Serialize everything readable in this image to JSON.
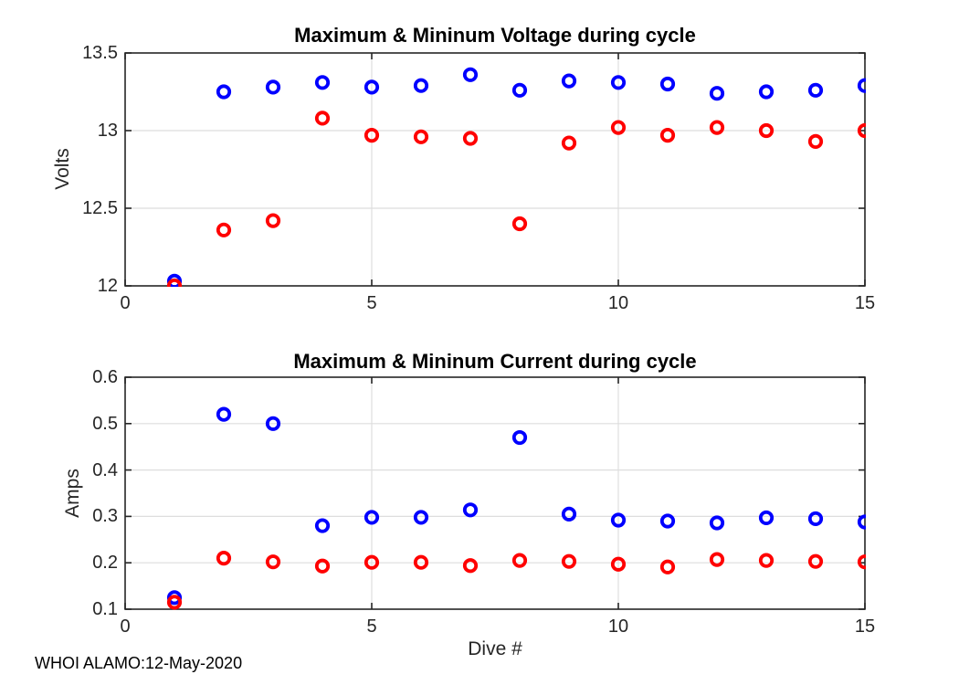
{
  "figure": {
    "annotation": "WHOI ALAMO:12-May-2020"
  },
  "chart_data": [
    {
      "type": "scatter",
      "title": "Maximum & Mininum Voltage during cycle",
      "xlabel": "",
      "ylabel": "Volts",
      "xlim": [
        0,
        15
      ],
      "ylim": [
        12,
        13.5
      ],
      "xticks": [
        0,
        5,
        10,
        15
      ],
      "xtick_labels": [
        "0",
        "5",
        "10",
        "15"
      ],
      "yticks": [
        12,
        12.5,
        13,
        13.5
      ],
      "ytick_labels": [
        "12",
        "12.5",
        "13",
        "13.5"
      ],
      "grid": true,
      "marker": "open-circle",
      "x": [
        1,
        2,
        3,
        4,
        5,
        6,
        7,
        8,
        9,
        10,
        11,
        12,
        13,
        14,
        15
      ],
      "series": [
        {
          "name": "max_voltage",
          "color": "#0000ff",
          "values": [
            12.03,
            13.25,
            13.28,
            13.31,
            13.28,
            13.29,
            13.36,
            13.26,
            13.32,
            13.31,
            13.3,
            13.24,
            13.25,
            13.26,
            13.29
          ]
        },
        {
          "name": "min_voltage",
          "color": "#ff0000",
          "values": [
            12.0,
            12.36,
            12.42,
            13.08,
            12.97,
            12.96,
            12.95,
            12.4,
            12.92,
            13.02,
            12.97,
            13.02,
            13.0,
            12.93,
            13.0
          ]
        }
      ]
    },
    {
      "type": "scatter",
      "title": "Maximum & Mininum Current during cycle",
      "xlabel": "Dive #",
      "ylabel": "Amps",
      "xlim": [
        0,
        15
      ],
      "ylim": [
        0.1,
        0.6
      ],
      "xticks": [
        0,
        5,
        10,
        15
      ],
      "xtick_labels": [
        "0",
        "5",
        "10",
        "15"
      ],
      "yticks": [
        0.1,
        0.2,
        0.3,
        0.4,
        0.5,
        0.6
      ],
      "ytick_labels": [
        "0.1",
        "0.2",
        "0.3",
        "0.4",
        "0.5",
        "0.6"
      ],
      "grid": true,
      "marker": "open-circle",
      "x": [
        1,
        2,
        3,
        4,
        5,
        6,
        7,
        8,
        9,
        10,
        11,
        12,
        13,
        14,
        15
      ],
      "series": [
        {
          "name": "max_current",
          "color": "#0000ff",
          "values": [
            0.125,
            0.52,
            0.5,
            0.28,
            0.298,
            0.298,
            0.314,
            0.47,
            0.305,
            0.292,
            0.29,
            0.286,
            0.297,
            0.295,
            0.288
          ]
        },
        {
          "name": "min_current",
          "color": "#ff0000",
          "values": [
            0.115,
            0.21,
            0.202,
            0.193,
            0.201,
            0.201,
            0.194,
            0.205,
            0.203,
            0.197,
            0.191,
            0.207,
            0.205,
            0.203,
            0.202
          ]
        }
      ]
    }
  ],
  "style": {
    "axis_color": "#262626",
    "grid_color": "#dedede",
    "title_color": "#000000",
    "marker_blue": "#0000ff",
    "marker_red": "#ff0000"
  }
}
